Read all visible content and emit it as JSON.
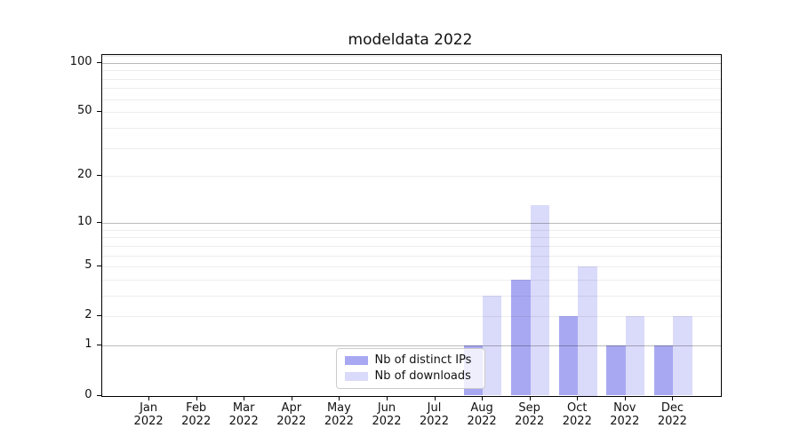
{
  "chart_data": {
    "type": "bar",
    "title": "modeldata 2022",
    "yscale": "log1p",
    "ylim": [
      0,
      111
    ],
    "grid": true,
    "legend_position": "lower-center-inside",
    "ytick_values": [
      0,
      1,
      2,
      5,
      10,
      20,
      50,
      100
    ],
    "ytick_labels": [
      "0",
      "1",
      "2",
      "5",
      "10",
      "20",
      "50",
      "100"
    ],
    "major_grid_values": [
      1,
      10,
      100
    ],
    "minor_grid_values": [
      2,
      3,
      4,
      5,
      6,
      7,
      8,
      9,
      20,
      30,
      40,
      50,
      60,
      70,
      80,
      90,
      110
    ],
    "categories": [
      {
        "month": "Jan",
        "year": "2022"
      },
      {
        "month": "Feb",
        "year": "2022"
      },
      {
        "month": "Mar",
        "year": "2022"
      },
      {
        "month": "Apr",
        "year": "2022"
      },
      {
        "month": "May",
        "year": "2022"
      },
      {
        "month": "Jun",
        "year": "2022"
      },
      {
        "month": "Jul",
        "year": "2022"
      },
      {
        "month": "Aug",
        "year": "2022"
      },
      {
        "month": "Sep",
        "year": "2022"
      },
      {
        "month": "Oct",
        "year": "2022"
      },
      {
        "month": "Nov",
        "year": "2022"
      },
      {
        "month": "Dec",
        "year": "2022"
      }
    ],
    "series": [
      {
        "name": "Nb of distinct IPs",
        "color": "#a8a8f2",
        "values": [
          0,
          0,
          0,
          0,
          0,
          0,
          0,
          1,
          4,
          2,
          1,
          1
        ]
      },
      {
        "name": "Nb of downloads",
        "color": "#dadafa",
        "values": [
          0,
          0,
          0,
          0,
          0,
          0,
          0,
          3,
          13,
          5,
          2,
          2
        ]
      }
    ],
    "colors": {
      "major_grid": "#00000045",
      "minor_grid": "#00000012",
      "axis": "#000000",
      "background": "#ffffff"
    }
  }
}
